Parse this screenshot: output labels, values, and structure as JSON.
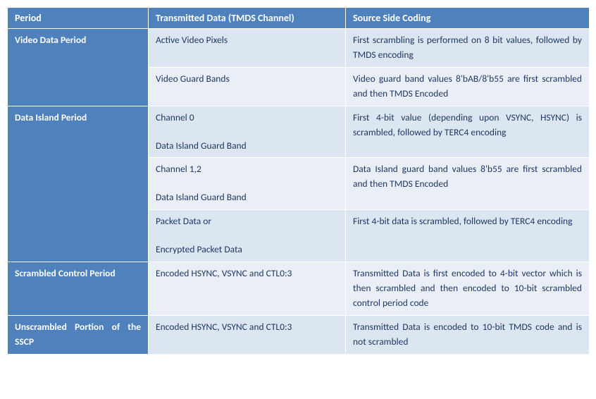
{
  "headers": {
    "period": "Period",
    "data": "Transmitted Data (TMDS Channel)",
    "coding": "Source Side Coding"
  },
  "rows": {
    "video": {
      "period": "Video Data Period",
      "r1": {
        "data": "Active Video Pixels",
        "coding": "First scrambling is performed on 8 bit values, followed by TMDS encoding"
      },
      "r2": {
        "data": "Video Guard Bands",
        "coding": "Video guard band values 8'bAB/8'b55 are first scrambled and then TMDS Encoded"
      }
    },
    "island": {
      "period": "Data Island Period",
      "r1": {
        "data_a": "Channel 0",
        "data_b": "Data Island Guard Band",
        "coding": "First 4-bit value (depending upon VSYNC, HSYNC) is scrambled, followed by TERC4 encoding"
      },
      "r2": {
        "data_a": "Channel 1,2",
        "data_b": "Data Island Guard Band",
        "coding": "Data Island guard band values 8'b55 are first scrambled and then TMDS Encoded"
      },
      "r3": {
        "data_a": "Packet Data or",
        "data_b": "Encrypted Packet Data",
        "coding": "First 4-bit data is scrambled, followed by TERC4 encoding"
      }
    },
    "scp": {
      "period": "Scrambled Control Period",
      "data": "Encoded HSYNC, VSYNC and CTL0:3",
      "coding": "Transmitted Data is first encoded to 4-bit vector which is then scrambled and then encoded to 10-bit scrambled control period code"
    },
    "sscp": {
      "period": "Unscrambled Portion of the SSCP",
      "data": "Encoded HSYNC, VSYNC and CTL0:3",
      "coding": "Transmitted Data is encoded to 10-bit TMDS code and is not scrambled"
    }
  }
}
